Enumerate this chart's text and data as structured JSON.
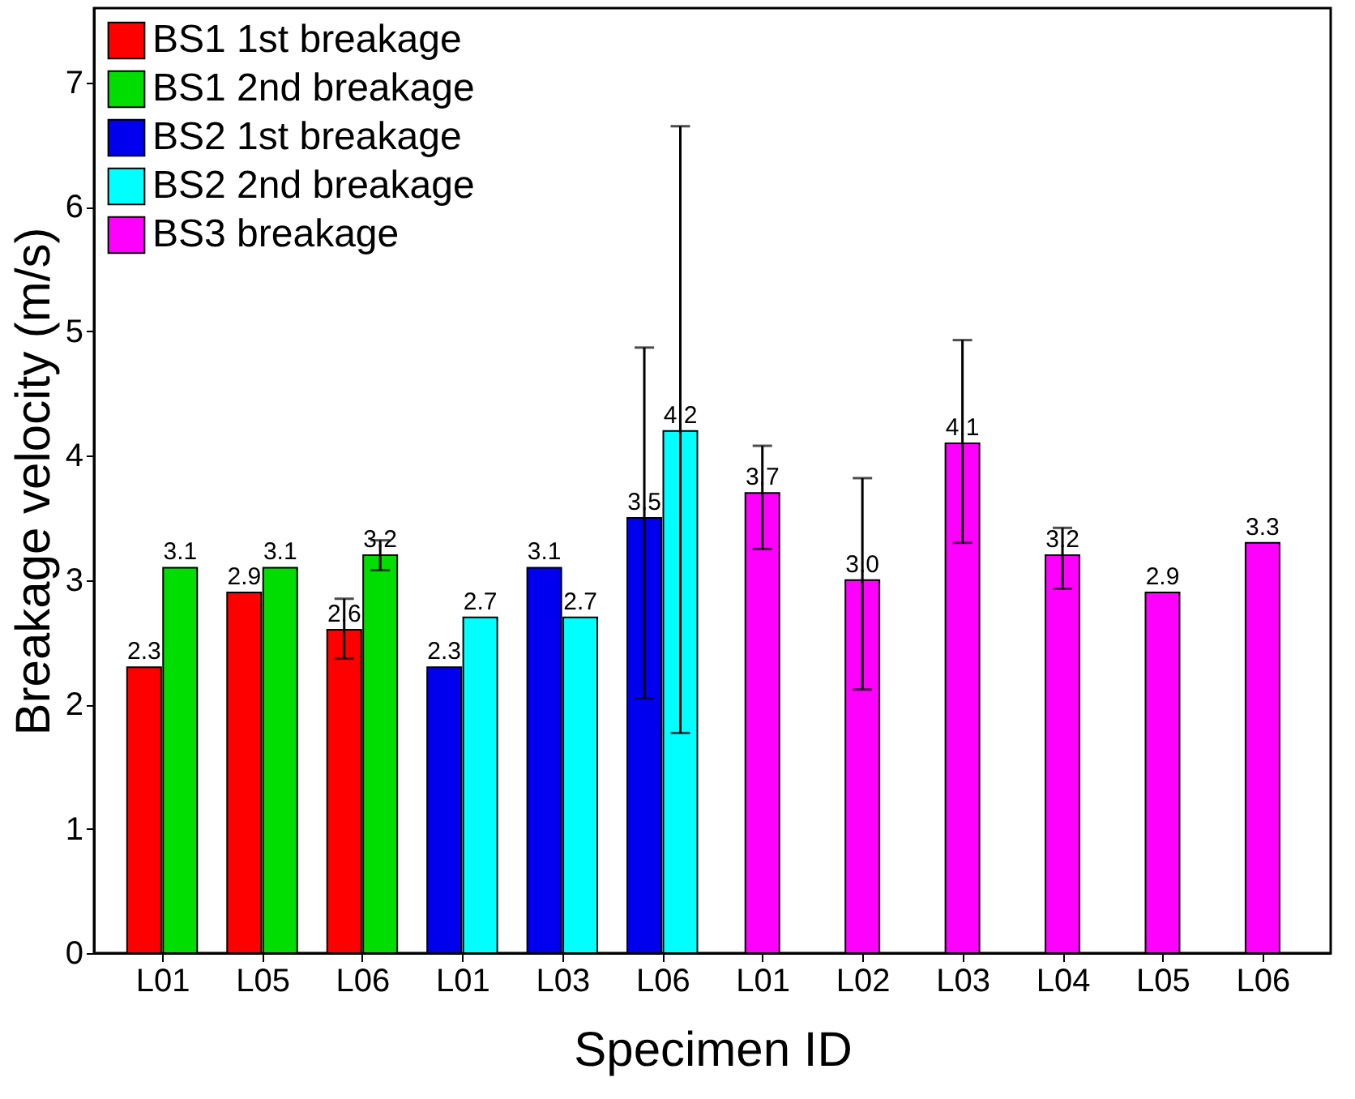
{
  "chart_data": {
    "type": "bar",
    "xlabel": "Specimen ID",
    "ylabel": "Breakage velocity (m/s)",
    "categories": [
      "L01",
      "L05",
      "L06",
      "L01",
      "L03",
      "L06",
      "L01",
      "L02",
      "L03",
      "L04",
      "L05",
      "L06"
    ],
    "series": [
      {
        "name": "BS1 1st breakage",
        "color": "#ff0000",
        "values": [
          2.3,
          2.9,
          2.6,
          null,
          null,
          null,
          null,
          null,
          null,
          null,
          null,
          null
        ],
        "value_labels": [
          "2.3",
          "2.9",
          "2.6",
          null,
          null,
          null,
          null,
          null,
          null,
          null,
          null,
          null
        ],
        "errors": [
          null,
          null,
          [
            2.37,
            2.85
          ],
          null,
          null,
          null,
          null,
          null,
          null,
          null,
          null,
          null
        ]
      },
      {
        "name": "BS1 2nd breakage",
        "color": "#00dd00",
        "values": [
          3.1,
          3.1,
          3.2,
          null,
          null,
          null,
          null,
          null,
          null,
          null,
          null,
          null
        ],
        "value_labels": [
          "3.1",
          "3.1",
          "3.2",
          null,
          null,
          null,
          null,
          null,
          null,
          null,
          null,
          null
        ],
        "errors": [
          null,
          null,
          [
            3.08,
            3.32
          ],
          null,
          null,
          null,
          null,
          null,
          null,
          null,
          null,
          null
        ]
      },
      {
        "name": "BS2 1st breakage",
        "color": "#0000ee",
        "values": [
          null,
          null,
          null,
          2.3,
          3.1,
          3.5,
          null,
          null,
          null,
          null,
          null,
          null
        ],
        "value_labels": [
          null,
          null,
          null,
          "2.3",
          "3.1",
          "3.5",
          null,
          null,
          null,
          null,
          null,
          null
        ],
        "errors": [
          null,
          null,
          null,
          null,
          null,
          [
            2.05,
            4.87
          ],
          null,
          null,
          null,
          null,
          null,
          null
        ]
      },
      {
        "name": "BS2 2nd breakage",
        "color": "#00ffff",
        "values": [
          null,
          null,
          null,
          2.7,
          2.7,
          4.2,
          null,
          null,
          null,
          null,
          null,
          null
        ],
        "value_labels": [
          null,
          null,
          null,
          "2.7",
          "2.7",
          "4.2",
          null,
          null,
          null,
          null,
          null,
          null
        ],
        "errors": [
          null,
          null,
          null,
          null,
          null,
          [
            1.77,
            6.65
          ],
          null,
          null,
          null,
          null,
          null,
          null
        ]
      },
      {
        "name": "BS3 breakage",
        "color": "#ff00ff",
        "values": [
          null,
          null,
          null,
          null,
          null,
          null,
          3.7,
          3.0,
          4.1,
          3.2,
          2.9,
          3.3
        ],
        "value_labels": [
          null,
          null,
          null,
          null,
          null,
          null,
          "3.7",
          "3.0",
          "4.1",
          "3.2",
          "2.9",
          "3.3"
        ],
        "errors": [
          null,
          null,
          null,
          null,
          null,
          null,
          [
            3.25,
            4.08
          ],
          [
            2.12,
            3.82
          ],
          [
            3.3,
            4.93
          ],
          [
            2.93,
            3.42
          ],
          null,
          null
        ]
      }
    ],
    "ylim": [
      0,
      7.6
    ],
    "yticks": [
      0,
      1,
      2,
      3,
      4,
      5,
      6,
      7
    ],
    "legend": "top left"
  }
}
